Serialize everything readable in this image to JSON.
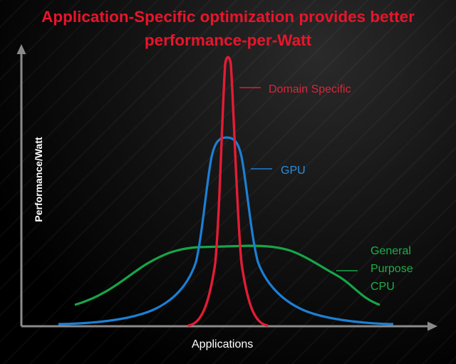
{
  "title_lines": [
    "Application-Specific optimization provides better",
    "performance-per-Watt"
  ],
  "axes": {
    "x_label": "Applications",
    "y_label": "Performance/Watt"
  },
  "curves": [
    {
      "id": "domain",
      "label": "Domain Specific",
      "color": "#e31c35"
    },
    {
      "id": "gpu",
      "label": "GPU",
      "color": "#1c7fd4"
    },
    {
      "id": "cpu",
      "label_lines": [
        "General",
        "Purpose",
        "CPU"
      ],
      "color": "#16a548"
    }
  ],
  "colors": {
    "title": "#e8152b",
    "axis": "#8a8a8a",
    "background": "#000000"
  }
}
